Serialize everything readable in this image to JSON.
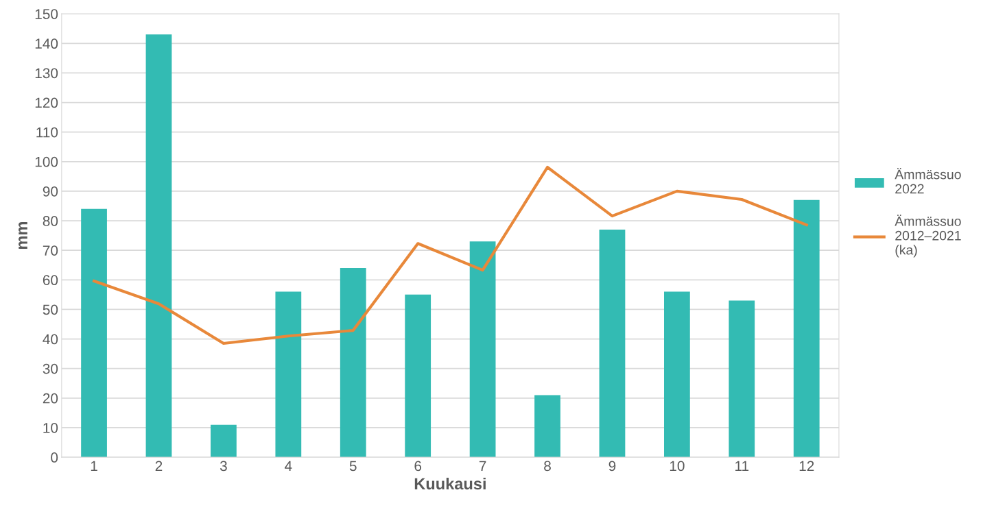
{
  "chart_data": {
    "type": "bar",
    "xlabel": "Kuukausi",
    "ylabel": "mm",
    "categories": [
      "1",
      "2",
      "3",
      "4",
      "5",
      "6",
      "7",
      "8",
      "9",
      "10",
      "11",
      "12"
    ],
    "series": [
      {
        "name": "Ämmässuo\n2022",
        "color": "#33bbb3",
        "values": [
          84,
          143,
          11,
          56,
          64,
          55,
          73,
          21,
          77,
          56,
          53,
          87
        ]
      },
      {
        "name": "Ämmässuo\n2012–2021\n(ka)",
        "type": "line",
        "color": "#e8883a",
        "values": [
          59.6,
          51.9,
          38.5,
          41,
          42.9,
          72.3,
          63.3,
          98.1,
          81.6,
          90,
          87.2,
          78.6
        ]
      }
    ],
    "ylim": [
      0,
      150
    ],
    "yticks": [
      0,
      10,
      20,
      30,
      40,
      50,
      60,
      70,
      80,
      90,
      100,
      110,
      120,
      130,
      140,
      150
    ],
    "grid": "y",
    "legend": "right",
    "marker": "none",
    "line_style": "solid"
  }
}
